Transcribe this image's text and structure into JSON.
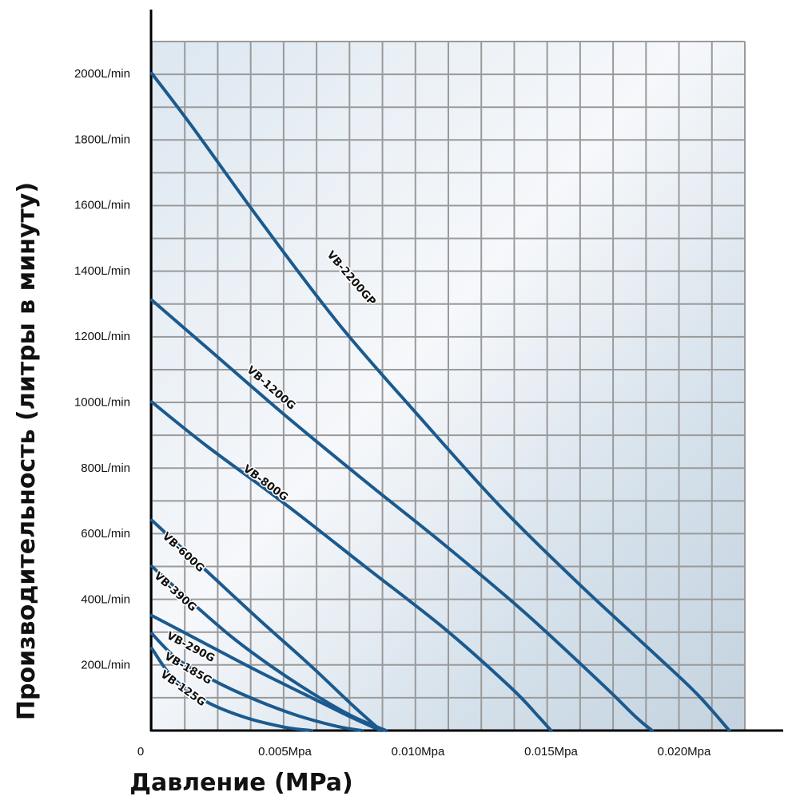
{
  "chart_data": {
    "type": "line",
    "xlabel": "Давление (MPa)",
    "ylabel": "Производительность (литры в минуту)",
    "xlim": [
      0,
      0.0227
    ],
    "ylim": [
      0,
      2100
    ],
    "grid": true,
    "x_ticks": [
      {
        "value": 0,
        "label": "0"
      },
      {
        "value": 0.005,
        "label": "0.005Mpa"
      },
      {
        "value": 0.01,
        "label": "0.010Mpa"
      },
      {
        "value": 0.015,
        "label": "0.015Mpa"
      },
      {
        "value": 0.02,
        "label": "0.020Mpa"
      }
    ],
    "y_ticks": [
      {
        "value": 200,
        "label": "200L/min"
      },
      {
        "value": 400,
        "label": "400L/min"
      },
      {
        "value": 600,
        "label": "600L/min"
      },
      {
        "value": 800,
        "label": "800L/min"
      },
      {
        "value": 1000,
        "label": "1000L/min"
      },
      {
        "value": 1200,
        "label": "1200L/min"
      },
      {
        "value": 1400,
        "label": "1400L/min"
      },
      {
        "value": 1600,
        "label": "1600L/min"
      },
      {
        "value": 1800,
        "label": "1800L/min"
      },
      {
        "value": 2000,
        "label": "2000L/min"
      }
    ],
    "series": [
      {
        "name": "VB-2200GP",
        "color": "#1b5a8e",
        "x": [
          0,
          0.0015,
          0.004,
          0.007,
          0.01,
          0.013,
          0.016,
          0.019,
          0.0205,
          0.0217
        ],
        "y": [
          2000,
          1840,
          1560,
          1240,
          960,
          690,
          450,
          225,
          110,
          0
        ],
        "label_x": 0.0074,
        "label_y": 1370
      },
      {
        "name": "VB-1200G",
        "color": "#1b5a8e",
        "x": [
          0,
          0.002,
          0.005,
          0.008,
          0.011,
          0.014,
          0.017,
          0.0182,
          0.0188
        ],
        "y": [
          1310,
          1170,
          960,
          760,
          565,
          360,
          135,
          40,
          0
        ],
        "label_x": 0.0044,
        "label_y": 1035
      },
      {
        "name": "VB-800G",
        "color": "#1b5a8e",
        "x": [
          0,
          0.002,
          0.005,
          0.008,
          0.011,
          0.0135,
          0.0145,
          0.015
        ],
        "y": [
          1000,
          870,
          690,
          500,
          310,
          130,
          45,
          0
        ],
        "label_x": 0.0042,
        "label_y": 745
      },
      {
        "name": "VB-600G",
        "color": "#1b5a8e",
        "x": [
          0,
          0.002,
          0.004,
          0.006,
          0.0075,
          0.0086
        ],
        "y": [
          640,
          490,
          340,
          195,
          80,
          0
        ],
        "label_x": 0.0011,
        "label_y": 535
      },
      {
        "name": "VB-390G",
        "color": "#1b5a8e",
        "x": [
          0,
          0.0015,
          0.003,
          0.0045,
          0.006,
          0.0075,
          0.0088
        ],
        "y": [
          500,
          390,
          285,
          195,
          115,
          45,
          0
        ],
        "label_x": 0.0008,
        "label_y": 415
      },
      {
        "name": "VB-290G",
        "color": "#1b5a8e",
        "x": [
          0,
          0.002,
          0.004,
          0.006,
          0.0075,
          0.0086
        ],
        "y": [
          350,
          265,
          180,
          100,
          40,
          0
        ],
        "label_x": 0.0014,
        "label_y": 245
      },
      {
        "name": "VB-185G",
        "color": "#1b5a8e",
        "x": [
          0,
          0.001,
          0.0025,
          0.004,
          0.0055,
          0.007,
          0.0079
        ],
        "y": [
          295,
          215,
          145,
          90,
          45,
          12,
          0
        ],
        "label_x": 0.0013,
        "label_y": 180
      },
      {
        "name": "VB-125G",
        "color": "#1b5a8e",
        "x": [
          0,
          0.0008,
          0.002,
          0.0035,
          0.005,
          0.006
        ],
        "y": [
          250,
          160,
          90,
          40,
          10,
          0
        ],
        "label_x": 0.0011,
        "label_y": 120
      }
    ]
  }
}
